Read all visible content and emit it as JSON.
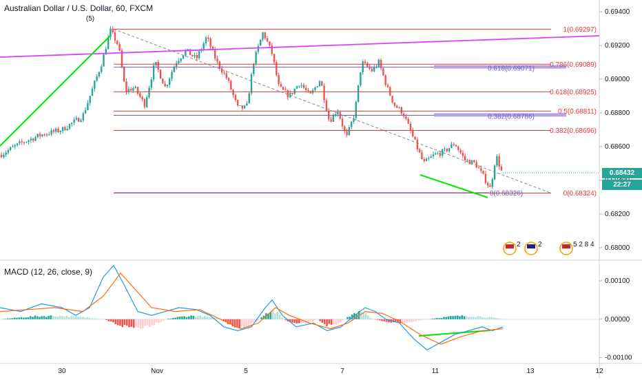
{
  "header": {
    "symbol_title": "Australian Dollar / U.S. Dollar, 60, FXCM",
    "wave_label": "(5)"
  },
  "price_pane": {
    "y_ticks": [
      "0.69400",
      "0.69200",
      "0.69000",
      "0.68800",
      "0.68600",
      "0.68400",
      "0.68200",
      "0.68000"
    ],
    "last_price": "0.68432",
    "countdown": "22:27",
    "colors": {
      "up": "#26a69a",
      "down": "#ef5350",
      "fib_red": "#e53935",
      "fib_purple": "#7e57c2",
      "trend_magenta": "#e040fb",
      "trend_green": "#00e600"
    }
  },
  "fib_right": [
    {
      "label": "1(0.69297)",
      "value": 0.69297
    },
    {
      "label": "0.786(0.69089)",
      "value": 0.69089
    },
    {
      "label": "0.618(0.68925)",
      "value": 0.68925
    },
    {
      "label": "0.5(0.68811)",
      "value": 0.68811
    },
    {
      "label": "0.382(0.68696)",
      "value": 0.68696
    },
    {
      "label": "0(0.68324)",
      "value": 0.68324
    }
  ],
  "fib_inner": [
    {
      "label": "0.618(0.69071)",
      "value": 0.69071
    },
    {
      "label": "0.382(0.68786)",
      "value": 0.68786
    },
    {
      "label": "0(0.68326)",
      "value": 0.68326
    }
  ],
  "event_markers": {
    "group1": "2",
    "group2": "2",
    "group3": "5 2 8 4"
  },
  "macd_pane": {
    "title": "MACD (12, 26, close, 9)",
    "y_ticks": [
      "0.00100",
      "0.00000",
      "-0.00100"
    ]
  },
  "x_axis": {
    "labels": [
      "30",
      "Nov",
      "5",
      "7",
      "11",
      "13",
      "12"
    ]
  },
  "chart_data": [
    {
      "type": "candlestick",
      "title": "Australian Dollar / U.S. Dollar, 60, FXCM",
      "ylim": [
        0.6793,
        0.6947
      ],
      "x_labels": [
        "30",
        "Nov",
        "5",
        "7",
        "11",
        "13",
        "12"
      ],
      "path_points": [
        [
          0,
          0.6855
        ],
        [
          30,
          0.6862
        ],
        [
          60,
          0.6867
        ],
        [
          90,
          0.687
        ],
        [
          120,
          0.6878
        ],
        [
          135,
          0.6895
        ],
        [
          148,
          0.691
        ],
        [
          160,
          0.6929
        ],
        [
          172,
          0.692
        ],
        [
          182,
          0.6893
        ],
        [
          195,
          0.6895
        ],
        [
          210,
          0.6885
        ],
        [
          225,
          0.691
        ],
        [
          240,
          0.6895
        ],
        [
          255,
          0.691
        ],
        [
          270,
          0.6917
        ],
        [
          285,
          0.6912
        ],
        [
          300,
          0.6925
        ],
        [
          315,
          0.691
        ],
        [
          330,
          0.69
        ],
        [
          345,
          0.6883
        ],
        [
          358,
          0.6883
        ],
        [
          368,
          0.691
        ],
        [
          382,
          0.6928
        ],
        [
          395,
          0.6915
        ],
        [
          405,
          0.6895
        ],
        [
          420,
          0.689
        ],
        [
          435,
          0.6898
        ],
        [
          450,
          0.689
        ],
        [
          465,
          0.69
        ],
        [
          478,
          0.6875
        ],
        [
          490,
          0.6882
        ],
        [
          503,
          0.6865
        ],
        [
          515,
          0.688
        ],
        [
          525,
          0.691
        ],
        [
          540,
          0.6905
        ],
        [
          550,
          0.691
        ],
        [
          562,
          0.6895
        ],
        [
          572,
          0.6885
        ],
        [
          585,
          0.688
        ],
        [
          595,
          0.687
        ],
        [
          605,
          0.686
        ],
        [
          615,
          0.685
        ],
        [
          630,
          0.6855
        ],
        [
          645,
          0.6857
        ],
        [
          660,
          0.6862
        ],
        [
          675,
          0.6852
        ],
        [
          690,
          0.685
        ],
        [
          705,
          0.684
        ],
        [
          712,
          0.6835
        ],
        [
          720,
          0.6855
        ],
        [
          730,
          0.6843
        ]
      ]
    },
    {
      "type": "line",
      "title": "MACD (12, 26, close, 9)",
      "ylim": [
        -0.00115,
        0.0015
      ],
      "series": [
        {
          "name": "MACD",
          "points": [
            [
              0,
              0.0003
            ],
            [
              30,
              0.0002
            ],
            [
              60,
              0.0004
            ],
            [
              90,
              0.0003
            ],
            [
              110,
              0.0001
            ],
            [
              130,
              0.0003
            ],
            [
              150,
              0.0011
            ],
            [
              165,
              0.0014
            ],
            [
              180,
              0.0009
            ],
            [
              200,
              0.0002
            ],
            [
              220,
              0.0001
            ],
            [
              240,
              0.0002
            ],
            [
              260,
              0.0003
            ],
            [
              285,
              0.00025
            ],
            [
              305,
              0.0001
            ],
            [
              325,
              -0.0002
            ],
            [
              345,
              -0.0003
            ],
            [
              365,
              -0.0002
            ],
            [
              385,
              0.0003
            ],
            [
              395,
              0.0005
            ],
            [
              410,
              0.0001
            ],
            [
              430,
              -0.0002
            ],
            [
              455,
              -0.0001
            ],
            [
              475,
              -0.0003
            ],
            [
              495,
              -0.0002
            ],
            [
              515,
              0.0001
            ],
            [
              530,
              0.0003
            ],
            [
              545,
              0.0002
            ],
            [
              560,
              0.0
            ],
            [
              580,
              -0.0001
            ],
            [
              600,
              -0.0005
            ],
            [
              620,
              -0.0008
            ],
            [
              640,
              -0.0006
            ],
            [
              660,
              -0.0004
            ],
            [
              680,
              -0.0003
            ],
            [
              700,
              -0.0002
            ],
            [
              715,
              -0.0003
            ],
            [
              730,
              -0.0002
            ]
          ]
        },
        {
          "name": "Signal",
          "points": [
            [
              0,
              0.0002
            ],
            [
              40,
              0.00025
            ],
            [
              80,
              0.0003
            ],
            [
              120,
              0.0002
            ],
            [
              150,
              0.0006
            ],
            [
              175,
              0.0012
            ],
            [
              195,
              0.0008
            ],
            [
              220,
              0.0003
            ],
            [
              255,
              0.0002
            ],
            [
              290,
              0.00025
            ],
            [
              320,
              0.0
            ],
            [
              350,
              -0.00025
            ],
            [
              375,
              -0.0001
            ],
            [
              400,
              0.0003
            ],
            [
              420,
              0.0001
            ],
            [
              450,
              -0.0001
            ],
            [
              480,
              -0.00025
            ],
            [
              505,
              -0.0001
            ],
            [
              530,
              0.0002
            ],
            [
              555,
              0.00015
            ],
            [
              580,
              -5e-05
            ],
            [
              610,
              -0.0004
            ],
            [
              640,
              -0.00065
            ],
            [
              670,
              -0.00045
            ],
            [
              700,
              -0.0003
            ],
            [
              730,
              -0.00025
            ]
          ]
        }
      ],
      "histogram": [
        {
          "x": [
            0,
            150
          ],
          "value": 0.0001
        },
        {
          "x": [
            150,
            240
          ],
          "value": -0.00025
        },
        {
          "x": [
            240,
            320
          ],
          "value": 0.0001
        },
        {
          "x": [
            320,
            375
          ],
          "value": -0.0003
        },
        {
          "x": [
            375,
            410
          ],
          "value": 0.00025
        },
        {
          "x": [
            410,
            460
          ],
          "value": -0.00015
        },
        {
          "x": [
            460,
            500
          ],
          "value": -0.0002
        },
        {
          "x": [
            500,
            540
          ],
          "value": 0.0002
        },
        {
          "x": [
            540,
            620
          ],
          "value": -0.0001
        },
        {
          "x": [
            620,
            730
          ],
          "value": 0.0001
        }
      ]
    }
  ]
}
